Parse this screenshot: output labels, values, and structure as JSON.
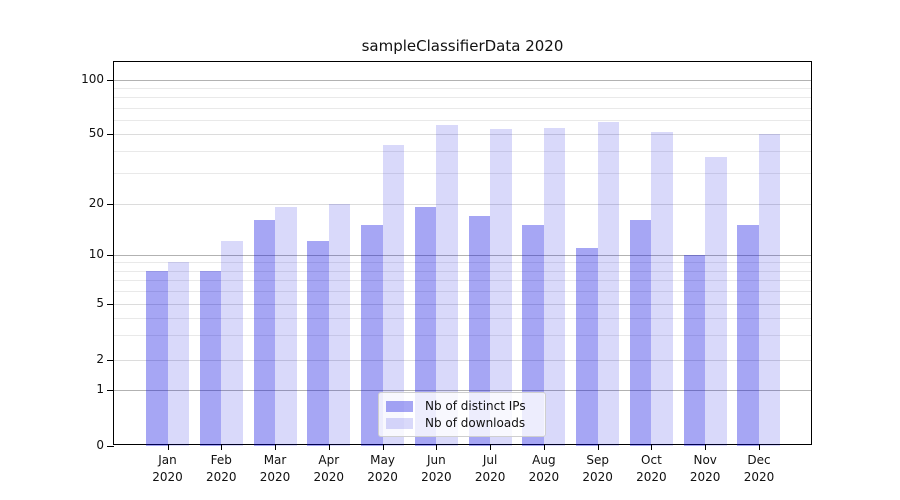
{
  "title": "sampleClassifierData 2020",
  "chart_data": {
    "type": "bar",
    "title": "sampleClassifierData 2020",
    "categories": [
      "Jan",
      "Feb",
      "Mar",
      "Apr",
      "May",
      "Jun",
      "Jul",
      "Aug",
      "Sep",
      "Oct",
      "Nov",
      "Dec"
    ],
    "category_year": "2020",
    "series": [
      {
        "name": "Nb of distinct IPs",
        "color": "rgba(0,0,224,0.35)",
        "flat_hex": "#a8a8f2",
        "values": [
          8,
          8,
          16,
          12,
          15,
          19,
          17,
          15,
          11,
          16,
          10,
          15
        ]
      },
      {
        "name": "Nb of downloads",
        "color": "rgba(0,0,224,0.15)",
        "flat_hex": "#d9d9fa",
        "values": [
          9,
          12,
          19,
          20,
          43,
          56,
          53,
          54,
          58,
          51,
          37,
          50
        ]
      }
    ],
    "xlabel": "",
    "ylabel": "",
    "yscale": "symlog",
    "yticks": [
      0,
      1,
      2,
      5,
      10,
      20,
      50,
      100
    ],
    "ytick_labels": [
      "0",
      "1",
      "2",
      "5",
      "10",
      "20",
      "50",
      "100"
    ],
    "minor_yticks": [
      3,
      4,
      6,
      7,
      8,
      9,
      30,
      40,
      60,
      70,
      80,
      90
    ],
    "ylim": [
      0,
      127
    ],
    "grid": true,
    "legend_position": "lower center"
  },
  "colors": {
    "bar_ips": "rgba(0,0,224,0.35)",
    "bar_downloads": "rgba(0,0,224,0.15)",
    "grid_major": "#b2b2b2",
    "grid_minor": "#e9e9e9",
    "axis": "#000000",
    "background": "#ffffff"
  },
  "legend": {
    "items": [
      {
        "label": "Nb of distinct IPs"
      },
      {
        "label": "Nb of downloads"
      }
    ]
  }
}
